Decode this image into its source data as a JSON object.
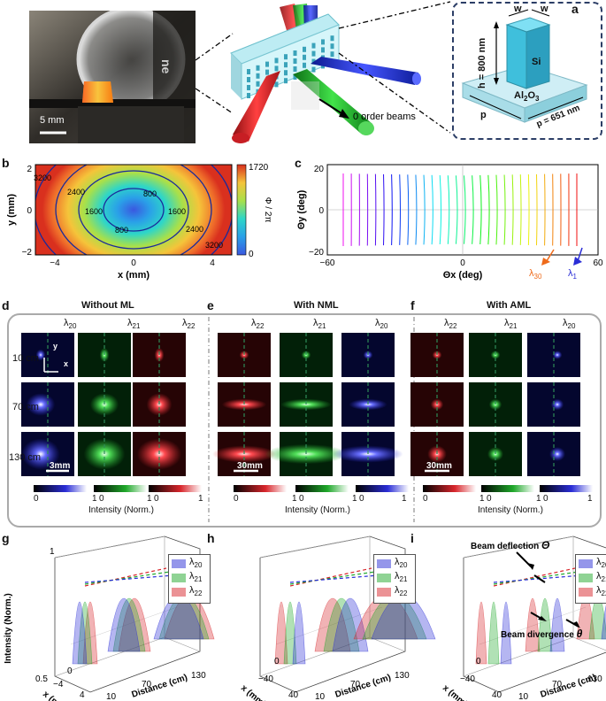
{
  "panels": {
    "a": "a",
    "b": "b",
    "c": "c",
    "d": "d",
    "e": "e",
    "f": "f",
    "g": "g",
    "h": "h",
    "i": "i"
  },
  "panel_a": {
    "scale_bar": "5 mm",
    "zero_order": "0 order beams",
    "unit_cell": {
      "w_top": "w",
      "w_side": "w",
      "height": "h = 800 nm",
      "pillar": "Si",
      "substrate": "Al",
      "substrate_sub": "2",
      "substrate_rest": "O",
      "substrate_sub2": "3",
      "p_left": "p",
      "p_right": "p = 651 nm"
    }
  },
  "panel_b": {
    "ylabel": "y (mm)",
    "xlabel": "x (mm)",
    "xticks": [
      "−4",
      "0",
      "4"
    ],
    "yticks": [
      "2",
      "0",
      "−2"
    ],
    "contour_labels": [
      "3200",
      "2400",
      "1600",
      "800",
      "800",
      "1600",
      "2400",
      "3200"
    ],
    "colorbar_max": "1720",
    "colorbar_min": "0",
    "colorbar_label": "Φ / 2π"
  },
  "panel_c": {
    "ylabel": "Θy (deg)",
    "xlabel": "Θx (deg)",
    "xticks": [
      "−60",
      "0",
      "60"
    ],
    "yticks": [
      "20",
      "0",
      "−20"
    ],
    "lam30": "λ",
    "lam30_sub": "30",
    "lam1": "λ",
    "lam1_sub": "1",
    "line_count": 30
  },
  "panel_d": {
    "title": "Without ML",
    "cols": [
      {
        "l": "λ",
        "s": "20"
      },
      {
        "l": "λ",
        "s": "21"
      },
      {
        "l": "λ",
        "s": "22"
      }
    ],
    "rows": [
      "10 cm",
      "70 cm",
      "130 cm"
    ],
    "scale": "3mm",
    "axis_y": "y",
    "axis_x": "x"
  },
  "panel_e": {
    "title": "With NML",
    "cols": [
      {
        "l": "λ",
        "s": "22"
      },
      {
        "l": "λ",
        "s": "21"
      },
      {
        "l": "λ",
        "s": "20"
      }
    ],
    "scale": "30mm"
  },
  "panel_f": {
    "title": "With AML",
    "cols": [
      {
        "l": "λ",
        "s": "22"
      },
      {
        "l": "λ",
        "s": "21"
      },
      {
        "l": "λ",
        "s": "20"
      }
    ],
    "scale": "30mm"
  },
  "colorbars": {
    "min": "0",
    "max": "1",
    "label": "Intensity (Norm.)"
  },
  "panel_g": {
    "zlabel": "Intensity (Norm.)",
    "zticks": [
      "1",
      "0.5"
    ],
    "xlabel": "x (mm)",
    "xticks": [
      "−4",
      "0",
      "4"
    ],
    "dlabel": "Distance (cm)",
    "dticks": [
      "10",
      "70",
      "130"
    ],
    "legend": [
      {
        "l": "λ",
        "s": "20"
      },
      {
        "l": "λ",
        "s": "21"
      },
      {
        "l": "λ",
        "s": "22"
      }
    ]
  },
  "panel_h": {
    "xlabel": "x (mm)",
    "xticks": [
      "−40",
      "0",
      "40"
    ],
    "dlabel": "Distance (cm)",
    "dticks": [
      "10",
      "70",
      "130"
    ]
  },
  "panel_i": {
    "xlabel": "x (mm)",
    "xticks": [
      "−40",
      "0",
      "40"
    ],
    "dlabel": "Distance (cm)",
    "dticks": [
      "10",
      "70",
      "130"
    ],
    "deflection": "Beam deflection ",
    "deflection_sym": "Θ",
    "divergence": "Beam divergence ",
    "divergence_sym": "θ"
  },
  "colors": {
    "blue": "#2a2dd6",
    "green": "#1fa82a",
    "red": "#d8262c",
    "dash": "#2e8b57"
  }
}
